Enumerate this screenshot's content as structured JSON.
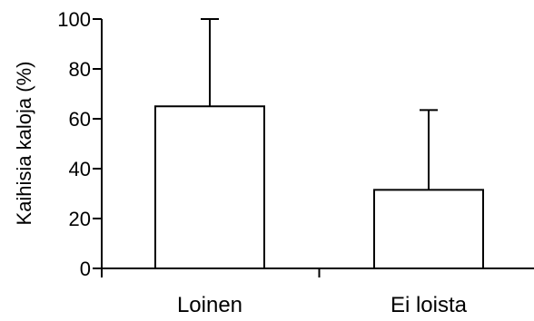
{
  "chart_data": {
    "type": "bar",
    "title": "",
    "xlabel": "",
    "ylabel": "Kaihisia kaloja (%)",
    "categories": [
      "Loinen",
      "Ei loista"
    ],
    "values": [
      65,
      31.5
    ],
    "error_upper": [
      100,
      63.5
    ],
    "ylim": [
      0,
      100
    ],
    "yticks": [
      "0",
      "20",
      "40",
      "60",
      "80",
      "100"
    ],
    "grid": false,
    "legend": "none",
    "colors": {
      "bar_fill": "#ffffff",
      "stroke": "#000000"
    }
  }
}
